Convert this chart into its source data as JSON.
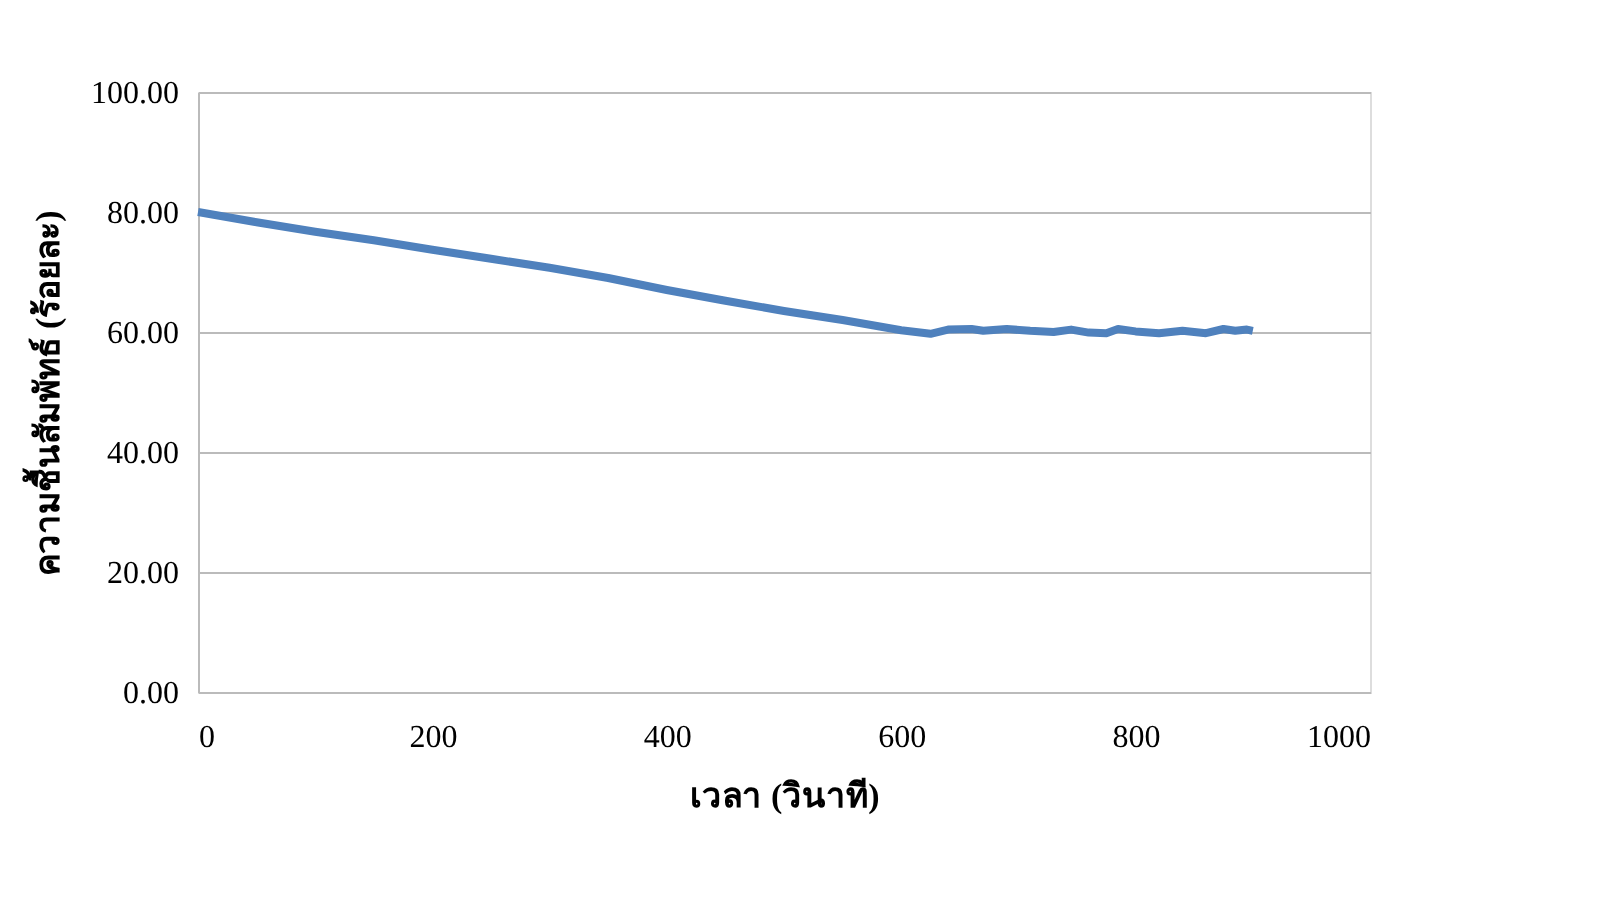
{
  "chart_data": {
    "type": "line",
    "xlabel": "เวลา (วินาที)",
    "ylabel": "ความชื้นสัมพัทธ์ (ร้อยละ)",
    "x": [
      0,
      50,
      100,
      150,
      200,
      250,
      300,
      350,
      400,
      450,
      500,
      550,
      600,
      625,
      640,
      660,
      670,
      690,
      710,
      730,
      745,
      760,
      775,
      785,
      800,
      820,
      840,
      860,
      875,
      885,
      895,
      900
    ],
    "series": [
      {
        "color": "#4f81bd",
        "values": [
          80,
          78.3,
          76.7,
          75.3,
          73.7,
          72.2,
          70.7,
          69.0,
          67.0,
          65.2,
          63.5,
          62.0,
          60.3,
          59.7,
          60.4,
          60.5,
          60.2,
          60.5,
          60.2,
          60.0,
          60.4,
          59.9,
          59.8,
          60.5,
          60.1,
          59.8,
          60.2,
          59.8,
          60.5,
          60.2,
          60.4,
          60.2
        ]
      }
    ],
    "xlim": [
      0,
      1000
    ],
    "xticks": [
      0,
      200,
      400,
      600,
      800,
      1000
    ],
    "ylim": [
      0,
      100
    ],
    "yticks": [
      {
        "value": 0,
        "label": "0.00"
      },
      {
        "value": 20,
        "label": "20.00"
      },
      {
        "value": 40,
        "label": "40.00"
      },
      {
        "value": 60,
        "label": "60.00"
      },
      {
        "value": 80,
        "label": "80.00"
      },
      {
        "value": 100,
        "label": "100.00"
      }
    ],
    "grid": "y",
    "legend": false,
    "marker": "none",
    "line_style": "solid"
  }
}
